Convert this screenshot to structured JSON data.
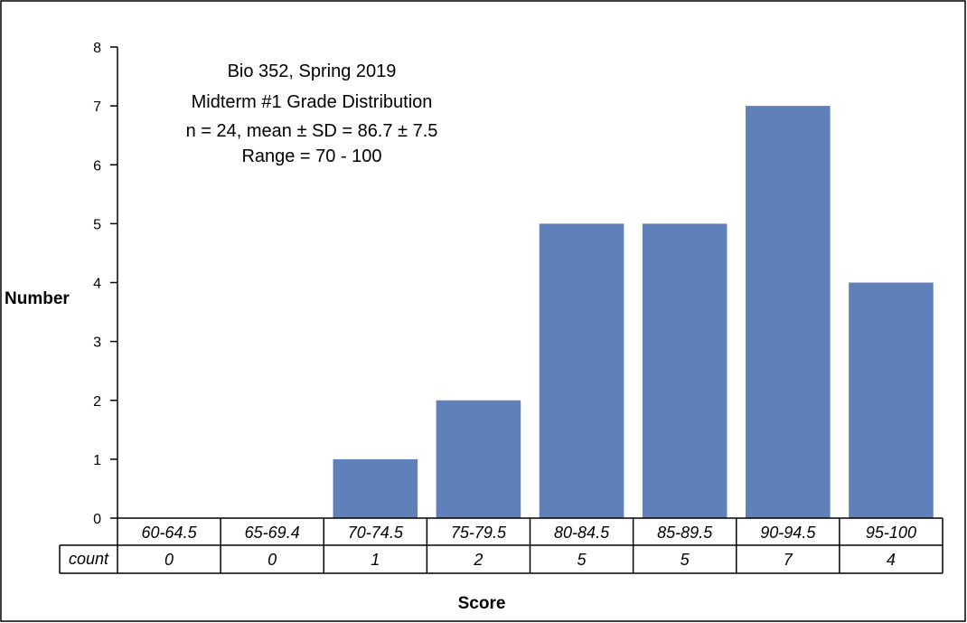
{
  "chart_data": {
    "type": "bar",
    "annotation": [
      "Bio 352, Spring 2019",
      "Midterm #1 Grade Distribution",
      "n = 24, mean ± SD = 86.7 ± 7.5",
      "Range = 70 - 100"
    ],
    "xlabel": "Score",
    "ylabel": "Number",
    "ylim": [
      0,
      8
    ],
    "yticks": [
      "0",
      "1",
      "2",
      "3",
      "4",
      "5",
      "6",
      "7",
      "8"
    ],
    "categories": [
      "60-64.5",
      "65-69.4",
      "70-74.5",
      "75-79.5",
      "80-84.5",
      "85-89.5",
      "90-94.5",
      "95-100"
    ],
    "values": [
      0,
      0,
      1,
      2,
      5,
      5,
      7,
      4
    ],
    "table_row_label": "count",
    "table_values": [
      "0",
      "0",
      "1",
      "2",
      "5",
      "5",
      "7",
      "4"
    ],
    "bar_color": "#6080BA",
    "grid": false,
    "legend": "none"
  }
}
